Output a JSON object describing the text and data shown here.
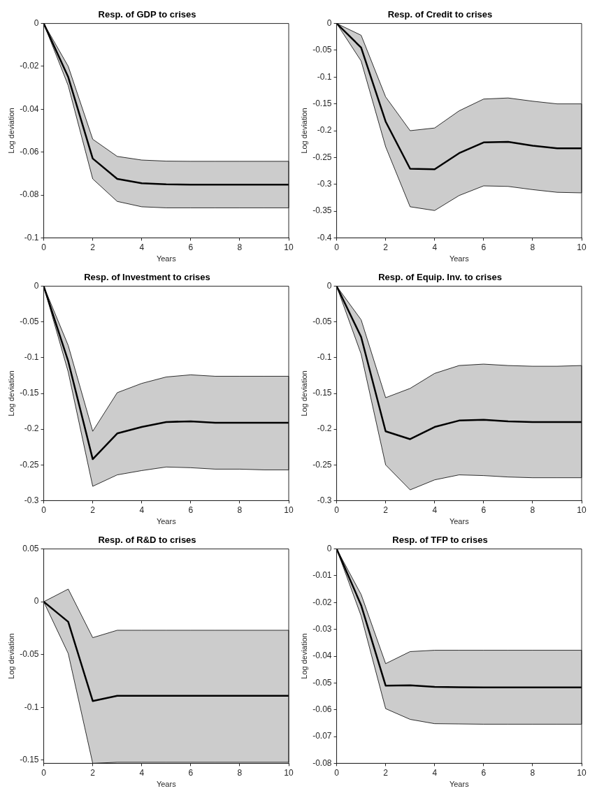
{
  "chart_data": [
    {
      "type": "line",
      "title": "Resp. of GDP to crises",
      "xlabel": "Years",
      "ylabel": "Log deviation",
      "x": [
        0,
        1,
        2,
        3,
        4,
        5,
        6,
        7,
        8,
        9,
        10
      ],
      "xlim": [
        0,
        10
      ],
      "xticks": [
        0,
        2,
        4,
        6,
        8,
        10
      ],
      "ylim": [
        -0.1,
        0
      ],
      "yticks": [
        -0.1,
        -0.08,
        -0.06,
        -0.04,
        -0.02,
        0
      ],
      "series": [
        {
          "color": "#000000",
          "values": [
            0,
            -0.025,
            -0.063,
            -0.0725,
            -0.0745,
            -0.075,
            -0.0752,
            -0.0752,
            -0.0752,
            -0.0752,
            -0.0752
          ],
          "lower": [
            0,
            -0.029,
            -0.0725,
            -0.083,
            -0.0855,
            -0.086,
            -0.086,
            -0.086,
            -0.086,
            -0.086,
            -0.086
          ],
          "upper": [
            0,
            -0.02,
            -0.054,
            -0.062,
            -0.0637,
            -0.0642,
            -0.0643,
            -0.0643,
            -0.0643,
            -0.0643,
            -0.0643
          ]
        }
      ]
    },
    {
      "type": "line",
      "title": "Resp. of Credit to crises",
      "xlabel": "Years",
      "ylabel": "Log deviation",
      "x": [
        0,
        1,
        2,
        3,
        4,
        5,
        6,
        7,
        8,
        9,
        10
      ],
      "xlim": [
        0,
        10
      ],
      "xticks": [
        0,
        2,
        4,
        6,
        8,
        10
      ],
      "ylim": [
        -0.4,
        0
      ],
      "yticks": [
        -0.4,
        -0.35,
        -0.3,
        -0.25,
        -0.2,
        -0.15,
        -0.1,
        -0.05,
        0
      ],
      "series": [
        {
          "color": "#000000",
          "values": [
            0,
            -0.045,
            -0.183,
            -0.271,
            -0.272,
            -0.242,
            -0.222,
            -0.221,
            -0.228,
            -0.233,
            -0.233
          ],
          "lower": [
            0,
            -0.07,
            -0.23,
            -0.342,
            -0.349,
            -0.321,
            -0.303,
            -0.304,
            -0.31,
            -0.315,
            -0.316
          ],
          "upper": [
            0,
            -0.022,
            -0.137,
            -0.2,
            -0.195,
            -0.163,
            -0.141,
            -0.139,
            -0.145,
            -0.15,
            -0.15
          ]
        }
      ]
    },
    {
      "type": "line",
      "title": "Resp. of Investment to crises",
      "xlabel": "Years",
      "ylabel": "Log deviation",
      "x": [
        0,
        1,
        2,
        3,
        4,
        5,
        6,
        7,
        8,
        9,
        10
      ],
      "xlim": [
        0,
        10
      ],
      "xticks": [
        0,
        2,
        4,
        6,
        8,
        10
      ],
      "ylim": [
        -0.3,
        0
      ],
      "yticks": [
        -0.3,
        -0.25,
        -0.2,
        -0.15,
        -0.1,
        -0.05,
        0
      ],
      "series": [
        {
          "color": "#000000",
          "values": [
            0,
            -0.105,
            -0.242,
            -0.206,
            -0.197,
            -0.19,
            -0.189,
            -0.191,
            -0.191,
            -0.191,
            -0.191
          ],
          "lower": [
            0,
            -0.12,
            -0.28,
            -0.264,
            -0.258,
            -0.253,
            -0.254,
            -0.256,
            -0.256,
            -0.257,
            -0.257
          ],
          "upper": [
            0,
            -0.083,
            -0.203,
            -0.149,
            -0.136,
            -0.127,
            -0.124,
            -0.126,
            -0.126,
            -0.126,
            -0.126
          ]
        }
      ]
    },
    {
      "type": "line",
      "title": "Resp. of Equip. Inv. to crises",
      "xlabel": "Years",
      "ylabel": "Log deviation",
      "x": [
        0,
        1,
        2,
        3,
        4,
        5,
        6,
        7,
        8,
        9,
        10
      ],
      "xlim": [
        0,
        10
      ],
      "xticks": [
        0,
        2,
        4,
        6,
        8,
        10
      ],
      "ylim": [
        -0.3,
        0
      ],
      "yticks": [
        -0.3,
        -0.25,
        -0.2,
        -0.15,
        -0.1,
        -0.05,
        0
      ],
      "series": [
        {
          "color": "#000000",
          "values": [
            0,
            -0.071,
            -0.203,
            -0.214,
            -0.197,
            -0.188,
            -0.187,
            -0.189,
            -0.19,
            -0.19,
            -0.19
          ],
          "lower": [
            0,
            -0.095,
            -0.25,
            -0.285,
            -0.271,
            -0.264,
            -0.265,
            -0.267,
            -0.268,
            -0.268,
            -0.268
          ],
          "upper": [
            0,
            -0.047,
            -0.156,
            -0.143,
            -0.122,
            -0.111,
            -0.109,
            -0.111,
            -0.112,
            -0.112,
            -0.111
          ]
        }
      ]
    },
    {
      "type": "line",
      "title": "Resp. of R&D to crises",
      "xlabel": "Years",
      "ylabel": "Log deviation",
      "x": [
        0,
        1,
        2,
        3,
        4,
        5,
        6,
        7,
        8,
        9,
        10
      ],
      "xlim": [
        0,
        10
      ],
      "xticks": [
        0,
        2,
        4,
        6,
        8,
        10
      ],
      "ylim": [
        -0.153,
        0.05
      ],
      "yticks": [
        -0.15,
        -0.1,
        -0.05,
        0,
        0.05
      ],
      "series": [
        {
          "color": "#000000",
          "values": [
            0,
            -0.019,
            -0.094,
            -0.089,
            -0.089,
            -0.089,
            -0.089,
            -0.089,
            -0.089,
            -0.089,
            -0.089
          ],
          "lower": [
            0,
            -0.049,
            -0.153,
            -0.152,
            -0.152,
            -0.152,
            -0.152,
            -0.152,
            -0.152,
            -0.152,
            -0.152
          ],
          "upper": [
            0,
            0.012,
            -0.034,
            -0.027,
            -0.027,
            -0.027,
            -0.027,
            -0.027,
            -0.027,
            -0.027,
            -0.027
          ]
        }
      ]
    },
    {
      "type": "line",
      "title": "Resp. of TFP to crises",
      "xlabel": "Years",
      "ylabel": "Log deviation",
      "x": [
        0,
        1,
        2,
        3,
        4,
        5,
        6,
        7,
        8,
        9,
        10
      ],
      "xlim": [
        0,
        10
      ],
      "xticks": [
        0,
        2,
        4,
        6,
        8,
        10
      ],
      "ylim": [
        -0.08,
        0
      ],
      "yticks": [
        -0.08,
        -0.07,
        -0.06,
        -0.05,
        -0.04,
        -0.03,
        -0.02,
        -0.01,
        0
      ],
      "series": [
        {
          "color": "#000000",
          "values": [
            0,
            -0.021,
            -0.051,
            -0.0509,
            -0.0515,
            -0.0516,
            -0.0517,
            -0.0517,
            -0.0517,
            -0.0517,
            -0.0517
          ],
          "lower": [
            0,
            -0.025,
            -0.0596,
            -0.0636,
            -0.0652,
            -0.0653,
            -0.0654,
            -0.0654,
            -0.0654,
            -0.0654,
            -0.0654
          ],
          "upper": [
            0,
            -0.017,
            -0.0428,
            -0.0383,
            -0.0378,
            -0.0378,
            -0.0378,
            -0.0378,
            -0.0378,
            -0.0378,
            -0.0378
          ]
        }
      ]
    }
  ]
}
